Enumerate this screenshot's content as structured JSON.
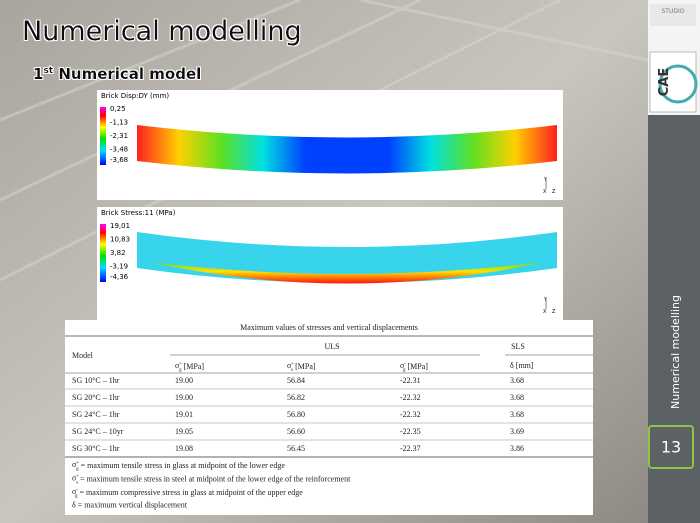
{
  "title": "Numerical modelling",
  "subtitle": {
    "num": "1",
    "sup": "st",
    "rest": " Numerical model"
  },
  "side_label": "Numerical modelling",
  "page_number": "13",
  "logos": {
    "studio": "STUDIO",
    "cae": "CAE"
  },
  "plots": [
    {
      "title": "Brick Disp:DY (mm)",
      "legend": [
        "0,25",
        "-1,13",
        "-2,31",
        "-3,48",
        "-3,68"
      ],
      "axes": [
        "Y",
        "X",
        "Z"
      ]
    },
    {
      "title": "Brick Stress:11 (MPa)",
      "legend": [
        "19,01",
        "10,83",
        "3,82",
        "-3,19",
        "-4,36"
      ],
      "axes": [
        "Y",
        "X",
        "Z"
      ]
    }
  ],
  "table": {
    "caption": "Maximum values of stresses and vertical displacements",
    "model": "Model",
    "groups": [
      "ULS",
      "SLS"
    ],
    "columns": [
      {
        "sym": "σ",
        "sub": "g",
        "sup": "+",
        "rest": " [MPa]"
      },
      {
        "sym": "σ",
        "sub": "s",
        "sup": "+",
        "rest": " [MPa]"
      },
      {
        "sym": "σ",
        "sub": "g",
        "sup": "-",
        "rest": " [MPa]"
      },
      {
        "sym": "δ",
        "sub": "",
        "sup": "",
        "rest": " [mm]"
      }
    ],
    "rows": [
      [
        "SG 10°C – 1hr",
        "19.00",
        "56.84",
        "-22.31",
        "3.68"
      ],
      [
        "SG 20°C – 1hr",
        "19.00",
        "56.82",
        "-22.32",
        "3.68"
      ],
      [
        "SG 24°C – 1hr",
        "19.01",
        "56.80",
        "-22.32",
        "3.68"
      ],
      [
        "SG 24°C – 10yr",
        "19.05",
        "56.60",
        "-22.35",
        "3.69"
      ],
      [
        "SG 30°C – 1hr",
        "19.08",
        "56.45",
        "-22.37",
        "3.86"
      ]
    ],
    "notes": [
      {
        "sym": "σ",
        "sub": "g",
        "sup": "+",
        "rest": " = maximum tensile stress in glass at midpoint of the lower edge"
      },
      {
        "sym": "σ",
        "sub": "s",
        "sup": "+",
        "rest": " = maximum tensile stress in steel at midpoint of the lower edge of the reinforcement"
      },
      {
        "sym": "σ",
        "sub": "g",
        "sup": "-",
        "rest": " = maximum compressive stress in glass at midpoint of the upper edge"
      },
      {
        "sym": "δ",
        "sub": "",
        "sup": "",
        "rest": " = maximum vertical displacement"
      }
    ]
  }
}
